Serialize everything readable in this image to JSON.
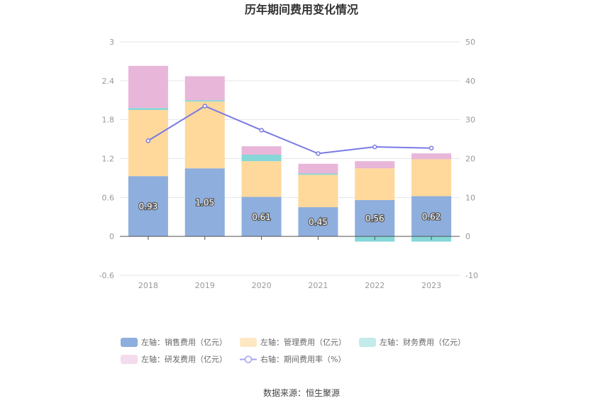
{
  "chart_data": {
    "type": "bar",
    "title": "历年期间费用变化情况",
    "categories": [
      "2018",
      "2019",
      "2020",
      "2021",
      "2022",
      "2023"
    ],
    "series": [
      {
        "name": "左轴：销售费用（亿元）",
        "axis": "left",
        "kind": "bar",
        "color": "#8eaedd",
        "values": [
          0.93,
          1.05,
          0.61,
          0.45,
          0.56,
          0.62
        ],
        "labels": [
          "0.93",
          "1.05",
          "0.61",
          "0.45",
          "0.56",
          "0.62"
        ]
      },
      {
        "name": "左轴：管理费用（亿元）",
        "axis": "left",
        "kind": "bar",
        "color": "#fed99b",
        "values": [
          1.02,
          1.03,
          0.55,
          0.5,
          0.49,
          0.57
        ]
      },
      {
        "name": "左轴：财务费用（亿元）",
        "axis": "left",
        "kind": "bar",
        "color": "#85d7d8",
        "values": [
          0.03,
          0.02,
          0.1,
          0.02,
          -0.08,
          -0.08
        ]
      },
      {
        "name": "左轴：研发费用（亿元）",
        "axis": "left",
        "kind": "bar",
        "color": "#e8b6d9",
        "values": [
          0.65,
          0.37,
          0.13,
          0.15,
          0.11,
          0.09
        ]
      },
      {
        "name": "右轴：期间费用率（%）",
        "axis": "right",
        "kind": "line",
        "color": "#7a7ae6",
        "values": [
          24.6,
          33.5,
          27.3,
          21.3,
          23.0,
          22.7
        ]
      }
    ],
    "yleft": {
      "min": -0.6,
      "max": 3,
      "ticks": [
        "-0.6",
        "0",
        "0.6",
        "1.2",
        "1.8",
        "2.4",
        "3"
      ]
    },
    "yright": {
      "min": -10,
      "max": 50,
      "ticks": [
        "-10",
        "0",
        "10",
        "20",
        "30",
        "40",
        "50"
      ]
    },
    "legend_position": "bottom",
    "source": "数据来源：恒生聚源"
  },
  "legend": {
    "colors": {
      "sales": "#8eaedd",
      "admin": "#fed99b",
      "finance": "#85d7d8",
      "rnd": "#e8b6d9",
      "rate": "#7a7ae6"
    }
  }
}
